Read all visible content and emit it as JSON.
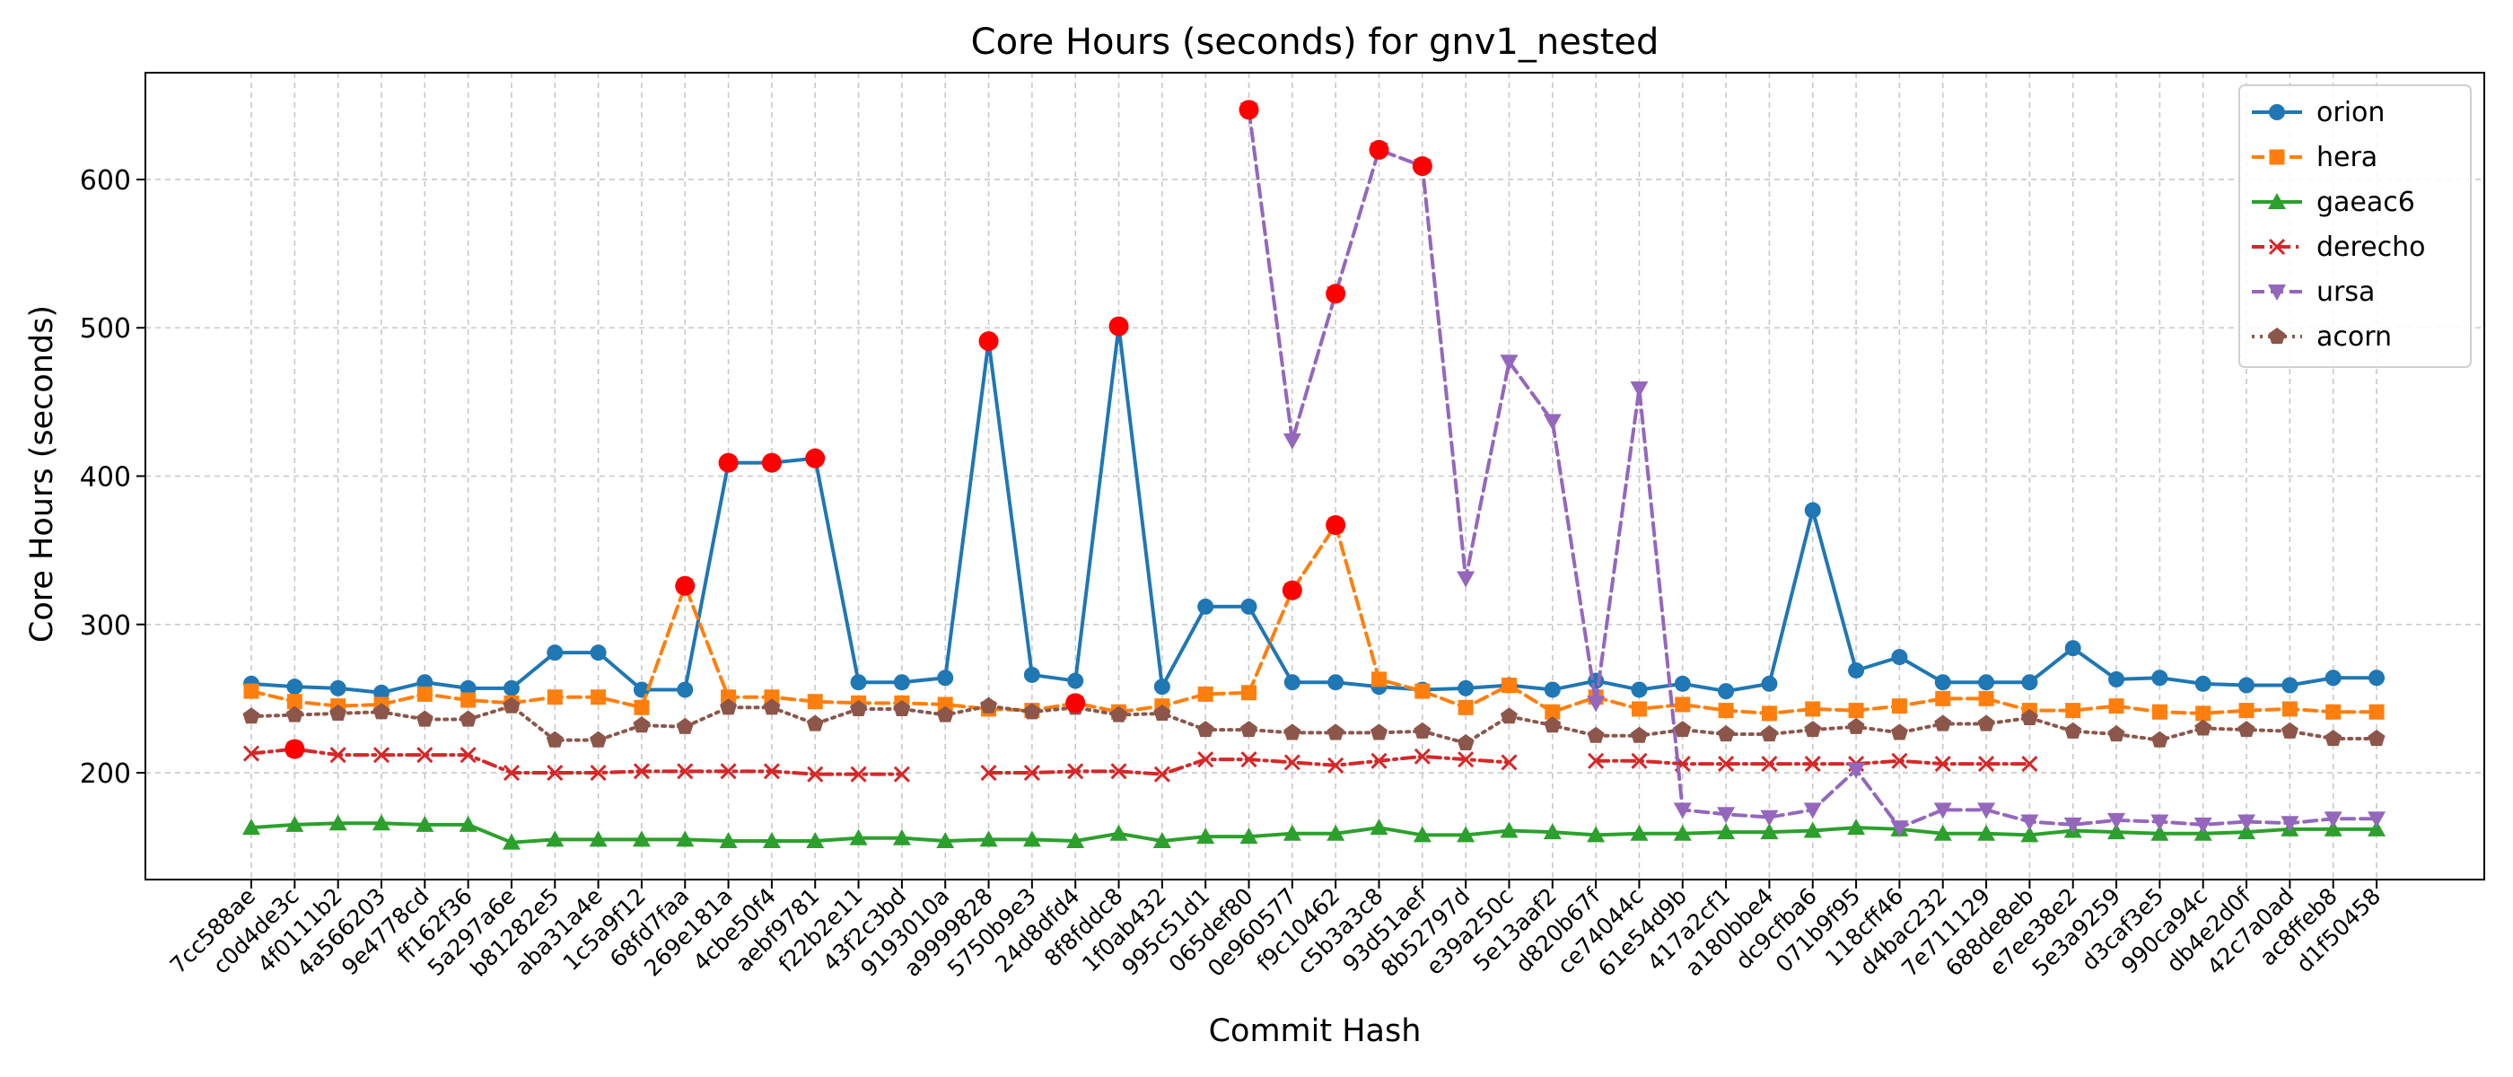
{
  "chart_data": {
    "type": "line",
    "title": "Core Hours (seconds) for gnv1_nested",
    "xlabel": "Commit Hash",
    "ylabel": "Core Hours (seconds)",
    "ylim": [
      128,
      672
    ],
    "yticks": [
      200,
      300,
      400,
      500,
      600
    ],
    "grid": true,
    "legend_position": "top-right",
    "categories": [
      "7cc588ae",
      "c0d4de3c",
      "4f0111b2",
      "4a566203",
      "9e4778cd",
      "ff162f36",
      "5a297a6e",
      "b81282e5",
      "aba31a4e",
      "1c5a9f12",
      "68fd7faa",
      "269e181a",
      "4cbe50f4",
      "aebf9781",
      "f22b2e11",
      "43f2c3bd",
      "9193010a",
      "a9999828",
      "5750b9e3",
      "24d8dfd4",
      "8f8fddc8",
      "1f0ab432",
      "995c51d1",
      "065def80",
      "0e960577",
      "f9c10462",
      "c5b3a3c8",
      "93d51aef",
      "8b52797d",
      "e39a250c",
      "5e13aaf2",
      "d820b67f",
      "ce74044c",
      "61e54d9b",
      "417a2cf1",
      "a180bbe4",
      "dc9cfba6",
      "071b9f95",
      "118cff46",
      "d4bac232",
      "7e711129",
      "688de8eb",
      "e7ee38e2",
      "5e3a9259",
      "d3caf3e5",
      "990ca94c",
      "db4e2d0f",
      "42c7a0ad",
      "ac8ffeb8",
      "d1f50458"
    ],
    "series": [
      {
        "name": "orion",
        "color": "#1f77b4",
        "marker": "circle",
        "dash": "solid",
        "values": [
          260,
          258,
          257,
          254,
          261,
          257,
          257,
          281,
          281,
          256,
          256,
          409,
          409,
          412,
          261,
          261,
          264,
          491,
          266,
          262,
          501,
          258,
          312,
          312,
          261,
          261,
          258,
          256,
          257,
          259,
          256,
          262,
          256,
          260,
          255,
          260,
          377,
          269,
          278,
          261,
          261,
          261,
          284,
          263,
          264,
          260,
          259,
          259,
          264,
          264
        ]
      },
      {
        "name": "hera",
        "color": "#ff7f0e",
        "marker": "square",
        "dash": "dashed",
        "values": [
          255,
          248,
          245,
          246,
          253,
          249,
          247,
          251,
          251,
          244,
          326,
          251,
          251,
          248,
          247,
          247,
          246,
          243,
          242,
          247,
          241,
          245,
          253,
          254,
          323,
          367,
          263,
          255,
          244,
          259,
          241,
          251,
          243,
          246,
          242,
          240,
          243,
          242,
          245,
          250,
          250,
          242,
          242,
          245,
          241,
          240,
          242,
          243,
          241,
          241
        ]
      },
      {
        "name": "gaeac6",
        "color": "#2ca02c",
        "marker": "triangle-up",
        "dash": "solid",
        "values": [
          163,
          165,
          166,
          166,
          165,
          165,
          153,
          155,
          155,
          155,
          155,
          154,
          154,
          154,
          156,
          156,
          154,
          155,
          155,
          154,
          159,
          154,
          157,
          157,
          159,
          159,
          163,
          158,
          158,
          161,
          160,
          158,
          159,
          159,
          160,
          160,
          161,
          163,
          162,
          159,
          159,
          158,
          161,
          160,
          159,
          159,
          160,
          162,
          162,
          162
        ]
      },
      {
        "name": "derecho",
        "color": "#d62728",
        "marker": "x",
        "dash": "dashdot",
        "values": [
          213,
          216,
          212,
          212,
          212,
          212,
          200,
          200,
          200,
          201,
          201,
          201,
          201,
          199,
          199,
          199,
          null,
          200,
          200,
          201,
          201,
          199,
          209,
          209,
          207,
          205,
          208,
          211,
          209,
          207,
          null,
          208,
          208,
          206,
          206,
          206,
          206,
          206,
          208,
          206,
          206,
          206,
          null,
          null,
          null,
          null,
          null,
          null,
          null,
          null
        ]
      },
      {
        "name": "ursa",
        "color": "#9467bd",
        "marker": "triangle-down",
        "dash": "dashed",
        "values": [
          null,
          null,
          null,
          null,
          null,
          null,
          null,
          null,
          null,
          null,
          null,
          null,
          null,
          null,
          null,
          null,
          null,
          null,
          null,
          null,
          null,
          null,
          null,
          647,
          424,
          523,
          620,
          609,
          331,
          477,
          437,
          247,
          459,
          175,
          172,
          170,
          175,
          202,
          163,
          175,
          175,
          167,
          165,
          168,
          167,
          165,
          167,
          166,
          169,
          169
        ]
      },
      {
        "name": "acorn",
        "color": "#8c564b",
        "marker": "pentagon",
        "dash": "dotted",
        "values": [
          238,
          239,
          240,
          241,
          236,
          236,
          245,
          222,
          222,
          232,
          231,
          244,
          244,
          233,
          243,
          243,
          239,
          245,
          241,
          244,
          239,
          240,
          229,
          229,
          227,
          227,
          227,
          228,
          220,
          238,
          232,
          225,
          225,
          229,
          226,
          226,
          229,
          231,
          227,
          233,
          233,
          237,
          228,
          226,
          222,
          230,
          229,
          228,
          223,
          223
        ]
      }
    ],
    "highlighted_points": [
      {
        "category": "c0d4de3c",
        "value": 216
      },
      {
        "category": "68fd7faa",
        "value": 326
      },
      {
        "category": "269e181a",
        "value": 409
      },
      {
        "category": "4cbe50f4",
        "value": 409
      },
      {
        "category": "aebf9781",
        "value": 412
      },
      {
        "category": "a9999828",
        "value": 491
      },
      {
        "category": "24d8dfd4",
        "value": 247
      },
      {
        "category": "8f8fddc8",
        "value": 501
      },
      {
        "category": "0e960577",
        "value": 323
      },
      {
        "category": "f9c10462",
        "value": 367
      },
      {
        "category": "065def80",
        "value": 647
      },
      {
        "category": "f9c10462",
        "value": 523
      },
      {
        "category": "c5b3a3c8",
        "value": 620
      },
      {
        "category": "93d51aef",
        "value": 609
      }
    ],
    "highlight_color": "#ff0000"
  }
}
